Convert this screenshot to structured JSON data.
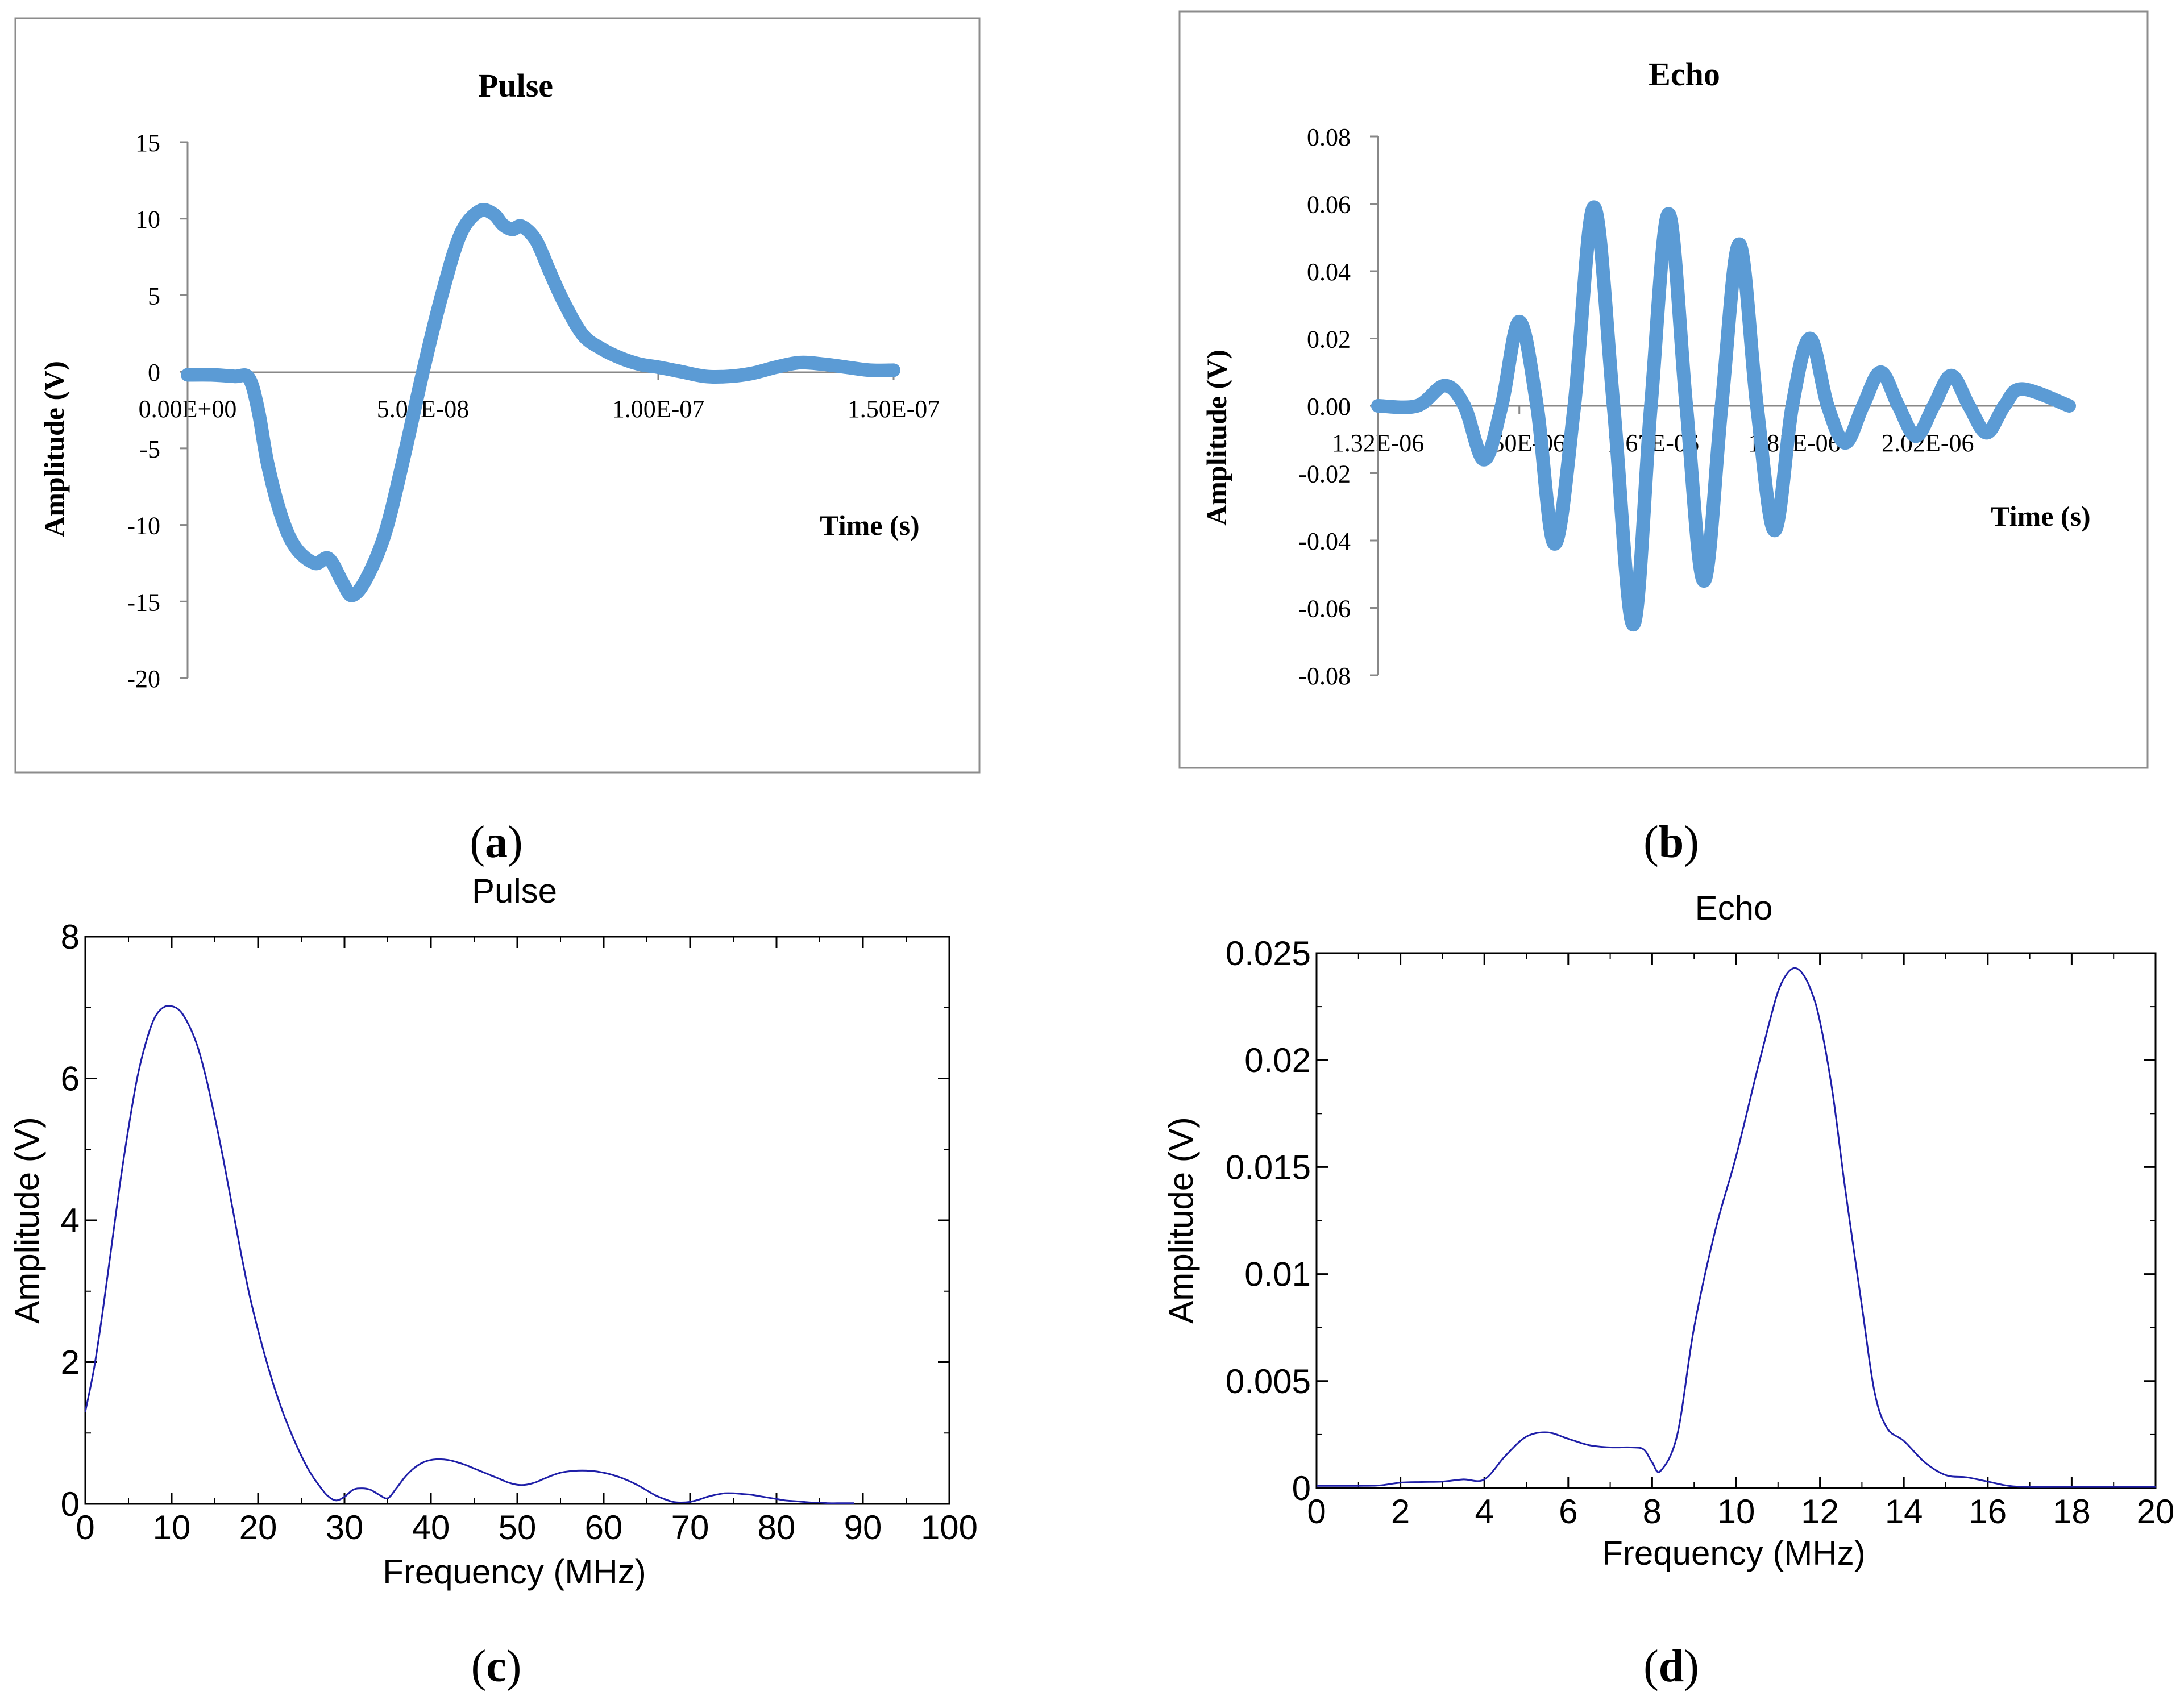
{
  "colors": {
    "time_series": "#5b9bd5",
    "spectrum": "#1f1fa8",
    "frame_border": "#8c8c8c",
    "axis": "#888888",
    "text": "#000000"
  },
  "panel_labels": [
    "a",
    "b",
    "c",
    "d"
  ],
  "chart_data": [
    {
      "id": "a",
      "type": "line",
      "title": "Pulse",
      "xlabel": "Time (s)",
      "ylabel": "Amplitude (V)",
      "xlim": [
        0,
        1.5e-07
      ],
      "ylim": [
        -20,
        15
      ],
      "xticks": [
        "0.00E+00",
        "5.00E-08",
        "1.00E-07",
        "1.50E-07"
      ],
      "xtick_values": [
        0,
        5e-08,
        1e-07,
        1.5e-07
      ],
      "yticks": [
        "15",
        "10",
        "5",
        "0",
        "-5",
        "-10",
        "-15",
        "-20"
      ],
      "ytick_values": [
        15,
        10,
        5,
        0,
        -5,
        -10,
        -15,
        -20
      ],
      "x_unit": 1e-09,
      "x": [
        0,
        5,
        10,
        13,
        15,
        17,
        20,
        23,
        27,
        30,
        33,
        35,
        38,
        42,
        46,
        50,
        54,
        58,
        62,
        65,
        67,
        69,
        71,
        74,
        77,
        80,
        84,
        88,
        92,
        96,
        100,
        105,
        110,
        115,
        120,
        125,
        130,
        135,
        140,
        145,
        150
      ],
      "values": [
        -0.2,
        -0.2,
        -0.3,
        -0.4,
        -2.5,
        -6,
        -9.5,
        -11.5,
        -12.5,
        -12.2,
        -13.8,
        -14.6,
        -13.5,
        -10.5,
        -5.5,
        0,
        5,
        9,
        10.5,
        10.3,
        9.6,
        9.3,
        9.5,
        8.6,
        6.5,
        4.5,
        2.4,
        1.5,
        0.9,
        0.5,
        0.3,
        0,
        -0.3,
        -0.3,
        -0.1,
        0.3,
        0.6,
        0.5,
        0.3,
        0.1,
        0.1
      ]
    },
    {
      "id": "b",
      "type": "line",
      "title": "Echo",
      "xlabel": "Time (s)",
      "ylabel": "Amplitude (V)",
      "xlim": [
        1.32e-06,
        2.2e-06
      ],
      "ylim": [
        -0.08,
        0.08
      ],
      "xticks": [
        "1.32E-06",
        "1.50E-06",
        "1.67E-06",
        "1.85E-06",
        "2.02E-06"
      ],
      "xtick_values": [
        1.32e-06,
        1.5e-06,
        1.67e-06,
        1.85e-06,
        2.02e-06
      ],
      "yticks": [
        "0.08",
        "0.06",
        "0.04",
        "0.02",
        "0.00",
        "-0.02",
        "-0.04",
        "-0.06",
        "-0.08"
      ],
      "ytick_values": [
        0.08,
        0.06,
        0.04,
        0.02,
        0,
        -0.02,
        -0.04,
        -0.06,
        -0.08
      ],
      "x_unit": 1e-06,
      "x_start": 1.32,
      "x_end": 2.2,
      "envelope_center": 1.66,
      "envelope_sigma": 0.14,
      "envelope_peak": 0.06,
      "carrier_frequency_mhz": 11.2,
      "carrier_phase": 1.0,
      "sample_count": 900,
      "peaks": [
        {
          "x": 1.405,
          "y": 0.006
        },
        {
          "x": 1.455,
          "y": -0.016
        },
        {
          "x": 1.5,
          "y": 0.025
        },
        {
          "x": 1.545,
          "y": -0.041
        },
        {
          "x": 1.595,
          "y": 0.059
        },
        {
          "x": 1.645,
          "y": -0.065
        },
        {
          "x": 1.69,
          "y": 0.057
        },
        {
          "x": 1.735,
          "y": -0.052
        },
        {
          "x": 1.78,
          "y": 0.048
        },
        {
          "x": 1.825,
          "y": -0.037
        },
        {
          "x": 1.87,
          "y": 0.02
        },
        {
          "x": 1.915,
          "y": -0.011
        },
        {
          "x": 1.96,
          "y": 0.01
        },
        {
          "x": 2.005,
          "y": -0.009
        },
        {
          "x": 2.05,
          "y": 0.009
        },
        {
          "x": 2.095,
          "y": -0.008
        },
        {
          "x": 2.14,
          "y": 0.005
        }
      ]
    },
    {
      "id": "c",
      "type": "line",
      "title": "Pulse",
      "xlabel": "Frequency (MHz)",
      "ylabel": "Amplitude (V)",
      "xlim": [
        0,
        100
      ],
      "ylim": [
        0,
        8
      ],
      "xticks": [
        "0",
        "10",
        "20",
        "30",
        "40",
        "50",
        "60",
        "70",
        "80",
        "90",
        "100"
      ],
      "xtick_values": [
        0,
        10,
        20,
        30,
        40,
        50,
        60,
        70,
        80,
        90,
        100
      ],
      "yticks": [
        "0",
        "2",
        "4",
        "6",
        "8"
      ],
      "ytick_values": [
        0,
        2,
        4,
        6,
        8
      ],
      "x": [
        0,
        1,
        2,
        3,
        4,
        5,
        6,
        7,
        8,
        9,
        10,
        11,
        12,
        13,
        14,
        15,
        16,
        17,
        18,
        19,
        20,
        21,
        22,
        23,
        24,
        25,
        26,
        27,
        28,
        29,
        30,
        31,
        32,
        33,
        34,
        35,
        36,
        37,
        38,
        39,
        40,
        41,
        42,
        43,
        44,
        45,
        46,
        47,
        48,
        49,
        50,
        51,
        52,
        53,
        54,
        55,
        56,
        57,
        58,
        59,
        60,
        61,
        62,
        63,
        64,
        65,
        66,
        67,
        68,
        69,
        70,
        71,
        72,
        73,
        74,
        75,
        76,
        77,
        78,
        79,
        80,
        81,
        82,
        83,
        84,
        85,
        86,
        87,
        88,
        89
      ],
      "values": [
        1.3,
        1.9,
        2.7,
        3.6,
        4.5,
        5.3,
        6.0,
        6.5,
        6.85,
        7.0,
        7.02,
        6.95,
        6.75,
        6.45,
        6.0,
        5.45,
        4.85,
        4.2,
        3.55,
        2.95,
        2.45,
        2.0,
        1.6,
        1.25,
        0.95,
        0.68,
        0.45,
        0.27,
        0.12,
        0.05,
        0.1,
        0.2,
        0.22,
        0.2,
        0.13,
        0.08,
        0.22,
        0.38,
        0.5,
        0.58,
        0.62,
        0.63,
        0.62,
        0.59,
        0.55,
        0.5,
        0.45,
        0.4,
        0.35,
        0.3,
        0.27,
        0.27,
        0.3,
        0.35,
        0.4,
        0.44,
        0.46,
        0.47,
        0.47,
        0.46,
        0.44,
        0.41,
        0.37,
        0.32,
        0.26,
        0.19,
        0.12,
        0.07,
        0.03,
        0.02,
        0.03,
        0.06,
        0.1,
        0.13,
        0.15,
        0.15,
        0.14,
        0.13,
        0.11,
        0.09,
        0.07,
        0.05,
        0.04,
        0.03,
        0.02,
        0.02,
        0.01,
        0.01,
        0.01,
        0.01
      ]
    },
    {
      "id": "d",
      "type": "line",
      "title": "Echo",
      "xlabel": "Frequency (MHz)",
      "ylabel": "Amplitude (V)",
      "xlim": [
        0,
        20
      ],
      "ylim": [
        0,
        0.025
      ],
      "xticks": [
        "0",
        "2",
        "4",
        "6",
        "8",
        "10",
        "12",
        "14",
        "16",
        "18",
        "20"
      ],
      "xtick_values": [
        0,
        2,
        4,
        6,
        8,
        10,
        12,
        14,
        16,
        18,
        20
      ],
      "yticks": [
        "0",
        "0.005",
        "0.01",
        "0.015",
        "0.02",
        "0.025"
      ],
      "ytick_values": [
        0,
        0.005,
        0.01,
        0.015,
        0.02,
        0.025
      ],
      "x": [
        0,
        0.5,
        1,
        1.5,
        2,
        2.5,
        3,
        3.5,
        4,
        4.5,
        5,
        5.5,
        6,
        6.5,
        7,
        7.5,
        7.8,
        8,
        8.2,
        8.6,
        9,
        9.5,
        10,
        10.5,
        10.8,
        11,
        11.2,
        11.4,
        11.6,
        11.8,
        12,
        12.3,
        12.6,
        13,
        13.3,
        13.6,
        14,
        14.5,
        15,
        15.5,
        16,
        16.5,
        17,
        18,
        19,
        20
      ],
      "values": [
        0.0001,
        0.0001,
        0.0001,
        0.00012,
        0.00025,
        0.00028,
        0.0003,
        0.0004,
        0.0004,
        0.0015,
        0.0024,
        0.0026,
        0.0023,
        0.002,
        0.0019,
        0.0019,
        0.0018,
        0.0012,
        0.0008,
        0.0025,
        0.0075,
        0.012,
        0.0155,
        0.0195,
        0.0218,
        0.0232,
        0.024,
        0.0243,
        0.024,
        0.0232,
        0.0218,
        0.0185,
        0.014,
        0.0085,
        0.0045,
        0.0028,
        0.0022,
        0.0012,
        0.0006,
        0.0005,
        0.0003,
        0.0001,
        5e-05,
        5e-05,
        5e-05,
        5e-05
      ]
    }
  ]
}
